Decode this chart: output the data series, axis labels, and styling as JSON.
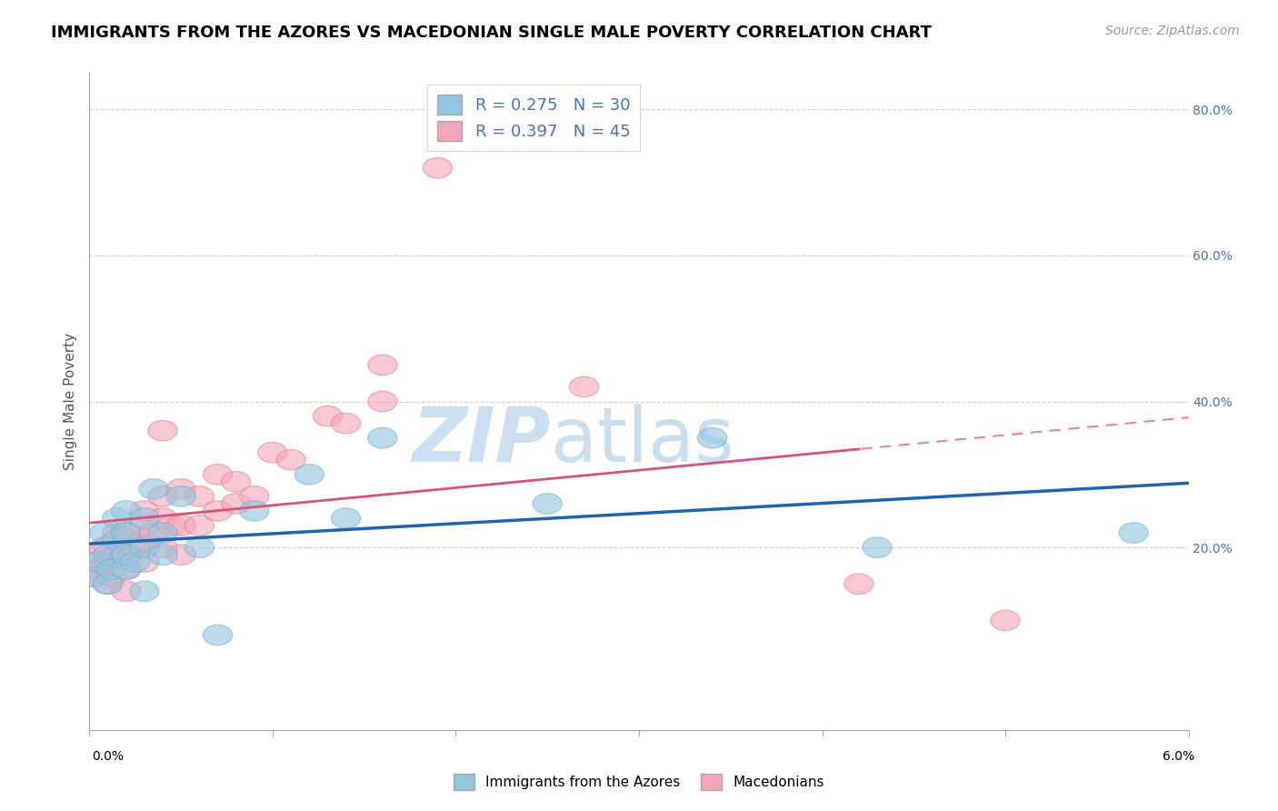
{
  "title": "IMMIGRANTS FROM THE AZORES VS MACEDONIAN SINGLE MALE POVERTY CORRELATION CHART",
  "source": "Source: ZipAtlas.com",
  "ylabel": "Single Male Poverty",
  "xlim": [
    0.0,
    0.06
  ],
  "ylim": [
    -0.05,
    0.85
  ],
  "blue_label": "Immigrants from the Azores",
  "pink_label": "Macedonians",
  "blue_R": 0.275,
  "blue_N": 30,
  "pink_R": 0.397,
  "pink_N": 45,
  "blue_color": "#92c5de",
  "pink_color": "#f4a6b8",
  "blue_edge_color": "#6baed6",
  "pink_edge_color": "#e8748a",
  "blue_line_color": "#2166ac",
  "pink_line_color": "#d6547a",
  "watermark_zip_color": "#ccdff0",
  "watermark_atlas_color": "#c8dff0",
  "grid_color": "#d0d0d0",
  "right_tick_color": "#4472c4",
  "ytick_positions": [
    0.0,
    0.2,
    0.4,
    0.6,
    0.8
  ],
  "ytick_labels": [
    "",
    "20.0%",
    "40.0%",
    "60.0%",
    "80.0%"
  ],
  "blue_scatter_x": [
    0.0003,
    0.0005,
    0.0008,
    0.001,
    0.001,
    0.0012,
    0.0015,
    0.0015,
    0.002,
    0.002,
    0.002,
    0.002,
    0.0025,
    0.003,
    0.003,
    0.003,
    0.0035,
    0.004,
    0.004,
    0.005,
    0.006,
    0.007,
    0.009,
    0.012,
    0.014,
    0.016,
    0.025,
    0.034,
    0.043,
    0.057
  ],
  "blue_scatter_y": [
    0.16,
    0.18,
    0.22,
    0.15,
    0.19,
    0.17,
    0.21,
    0.24,
    0.17,
    0.19,
    0.22,
    0.25,
    0.18,
    0.14,
    0.2,
    0.24,
    0.28,
    0.19,
    0.22,
    0.27,
    0.2,
    0.08,
    0.25,
    0.3,
    0.24,
    0.35,
    0.26,
    0.35,
    0.2,
    0.22
  ],
  "pink_scatter_x": [
    0.0002,
    0.0004,
    0.0006,
    0.0008,
    0.001,
    0.001,
    0.001,
    0.0012,
    0.0015,
    0.0015,
    0.002,
    0.002,
    0.002,
    0.002,
    0.0025,
    0.003,
    0.003,
    0.003,
    0.003,
    0.0035,
    0.004,
    0.004,
    0.004,
    0.004,
    0.0045,
    0.005,
    0.005,
    0.005,
    0.006,
    0.006,
    0.007,
    0.007,
    0.008,
    0.008,
    0.009,
    0.01,
    0.011,
    0.013,
    0.014,
    0.016,
    0.016,
    0.019,
    0.027,
    0.042,
    0.05
  ],
  "pink_scatter_y": [
    0.16,
    0.18,
    0.17,
    0.2,
    0.15,
    0.18,
    0.2,
    0.16,
    0.19,
    0.22,
    0.14,
    0.17,
    0.19,
    0.22,
    0.2,
    0.18,
    0.21,
    0.23,
    0.25,
    0.22,
    0.2,
    0.24,
    0.27,
    0.36,
    0.23,
    0.19,
    0.23,
    0.28,
    0.23,
    0.27,
    0.25,
    0.3,
    0.26,
    0.29,
    0.27,
    0.33,
    0.32,
    0.38,
    0.37,
    0.4,
    0.45,
    0.72,
    0.42,
    0.15,
    0.1
  ],
  "title_fontsize": 13,
  "source_fontsize": 10,
  "label_fontsize": 11,
  "legend_fontsize": 13
}
